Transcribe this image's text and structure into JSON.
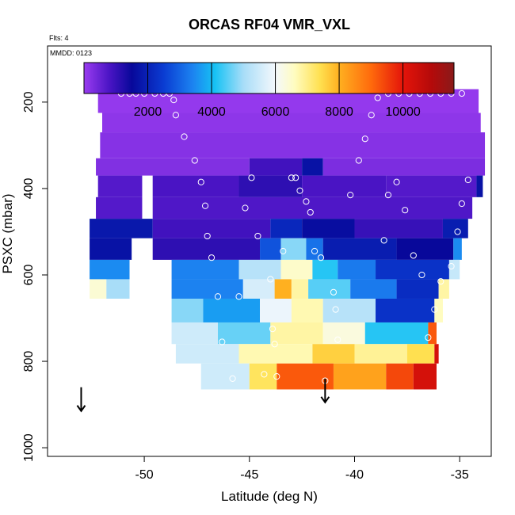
{
  "chart_data": {
    "type": "heatmap",
    "title": "ORCAS RF04 VMR_VXL",
    "flts_label": "Flts: 4",
    "mmdd_label": "MMDD: 0123",
    "xlabel": "Latitude (deg N)",
    "ylabel": "PSXC (mbar)",
    "xlim": [
      -54.6,
      -33.5
    ],
    "ylim": [
      1020,
      70
    ],
    "x_ticks": [
      -50,
      -45,
      -40,
      -35
    ],
    "x_tick_labels": [
      "-50",
      "-45",
      "-40",
      "-35"
    ],
    "y_ticks": [
      200,
      400,
      600,
      800,
      1000
    ],
    "y_tick_labels": [
      "200",
      "400",
      "600",
      "800",
      "1000"
    ],
    "colorbar": {
      "min": 0,
      "max": 11600,
      "ticks": [
        2000,
        4000,
        6000,
        8000,
        10000
      ],
      "tick_labels": [
        "2000",
        "4000",
        "6000",
        "8000",
        "10000"
      ],
      "stops": [
        {
          "v": 0,
          "c": "#9a3cf0"
        },
        {
          "v": 800,
          "c": "#4a14c4"
        },
        {
          "v": 1500,
          "c": "#08089a"
        },
        {
          "v": 2500,
          "c": "#0a3cd2"
        },
        {
          "v": 3400,
          "c": "#1c82f0"
        },
        {
          "v": 4100,
          "c": "#16c2f4"
        },
        {
          "v": 5000,
          "c": "#a8ddf8"
        },
        {
          "v": 6000,
          "c": "#f4f8fc"
        },
        {
          "v": 6600,
          "c": "#fffcc0"
        },
        {
          "v": 7400,
          "c": "#ffe050"
        },
        {
          "v": 8000,
          "c": "#ffb020"
        },
        {
          "v": 9000,
          "c": "#ff6a0c"
        },
        {
          "v": 10000,
          "c": "#e4140a"
        },
        {
          "v": 10900,
          "c": "#b40a0a"
        },
        {
          "v": 11600,
          "c": "#8a1a1a"
        }
      ]
    },
    "rows": [
      {
        "p0": 170,
        "p1": 225,
        "segments": [
          {
            "x0": -52.2,
            "x1": -34.1,
            "v": 60
          }
        ]
      },
      {
        "p0": 225,
        "p1": 270,
        "segments": [
          {
            "x0": -52.0,
            "x1": -34.0,
            "v": 120
          }
        ]
      },
      {
        "p0": 270,
        "p1": 330,
        "segments": [
          {
            "x0": -52.1,
            "x1": -33.8,
            "v": 200
          }
        ]
      },
      {
        "p0": 330,
        "p1": 370,
        "segments": [
          {
            "x0": -52.3,
            "x1": -45.0,
            "v": 250
          },
          {
            "x0": -45.0,
            "x1": -42.5,
            "v": 900
          },
          {
            "x0": -42.5,
            "x1": -41.5,
            "v": 1700
          },
          {
            "x0": -41.5,
            "x1": -33.8,
            "v": 300
          }
        ]
      },
      {
        "p0": 370,
        "p1": 420,
        "segments": [
          {
            "x0": -52.2,
            "x1": -50.1,
            "v": 700
          },
          {
            "x0": -49.6,
            "x1": -45.5,
            "v": 800
          },
          {
            "x0": -45.5,
            "x1": -42.5,
            "v": 1100
          },
          {
            "x0": -42.5,
            "x1": -38.5,
            "v": 800
          },
          {
            "x0": -38.5,
            "x1": -34.2,
            "v": 700
          },
          {
            "x0": -34.2,
            "x1": -33.9,
            "v": 1700
          }
        ]
      },
      {
        "p0": 420,
        "p1": 470,
        "segments": [
          {
            "x0": -52.3,
            "x1": -50.1,
            "v": 700
          },
          {
            "x0": -49.6,
            "x1": -34.4,
            "v": 750
          }
        ]
      },
      {
        "p0": 470,
        "p1": 515,
        "segments": [
          {
            "x0": -52.6,
            "x1": -49.6,
            "v": 1800
          },
          {
            "x0": -49.6,
            "x1": -44.0,
            "v": 900
          },
          {
            "x0": -44.0,
            "x1": -42.5,
            "v": 2100
          },
          {
            "x0": -42.5,
            "x1": -40.0,
            "v": 1600
          },
          {
            "x0": -40.0,
            "x1": -35.8,
            "v": 1000
          },
          {
            "x0": -35.8,
            "x1": -34.6,
            "v": 1900
          }
        ]
      },
      {
        "p0": 515,
        "p1": 565,
        "segments": [
          {
            "x0": -52.6,
            "x1": -50.6,
            "v": 1700
          },
          {
            "x0": -49.6,
            "x1": -44.5,
            "v": 1100
          },
          {
            "x0": -44.5,
            "x1": -43.5,
            "v": 2800
          },
          {
            "x0": -43.5,
            "x1": -42.3,
            "v": 4800
          },
          {
            "x0": -42.3,
            "x1": -41.5,
            "v": 3200
          },
          {
            "x0": -41.5,
            "x1": -38.0,
            "v": 1900
          },
          {
            "x0": -38.0,
            "x1": -35.3,
            "v": 1500
          },
          {
            "x0": -35.3,
            "x1": -34.9,
            "v": 3500
          }
        ]
      },
      {
        "p0": 565,
        "p1": 610,
        "segments": [
          {
            "x0": -52.6,
            "x1": -50.7,
            "v": 3500
          },
          {
            "x0": -48.7,
            "x1": -45.5,
            "v": 3400
          },
          {
            "x0": -45.5,
            "x1": -43.5,
            "v": 5200
          },
          {
            "x0": -43.5,
            "x1": -42.0,
            "v": 6500
          },
          {
            "x0": -42.0,
            "x1": -40.8,
            "v": 4200
          },
          {
            "x0": -40.8,
            "x1": -39.0,
            "v": 3300
          },
          {
            "x0": -39.0,
            "x1": -35.5,
            "v": 2300
          },
          {
            "x0": -35.5,
            "x1": -35.0,
            "v": 5400
          }
        ]
      },
      {
        "p0": 610,
        "p1": 655,
        "segments": [
          {
            "x0": -52.6,
            "x1": -51.8,
            "v": 6400
          },
          {
            "x0": -51.8,
            "x1": -50.7,
            "v": 5000
          },
          {
            "x0": -48.7,
            "x1": -45.3,
            "v": 3400
          },
          {
            "x0": -45.3,
            "x1": -43.8,
            "v": 5600
          },
          {
            "x0": -43.8,
            "x1": -43.0,
            "v": 8000
          },
          {
            "x0": -43.0,
            "x1": -42.2,
            "v": 6800
          },
          {
            "x0": -42.2,
            "x1": -40.2,
            "v": 4500
          },
          {
            "x0": -40.2,
            "x1": -38.0,
            "v": 3300
          },
          {
            "x0": -38.0,
            "x1": -36.0,
            "v": 2200
          },
          {
            "x0": -36.0,
            "x1": -35.5,
            "v": 6800
          }
        ]
      },
      {
        "p0": 655,
        "p1": 710,
        "segments": [
          {
            "x0": -48.7,
            "x1": -47.2,
            "v": 4800
          },
          {
            "x0": -47.2,
            "x1": -44.5,
            "v": 3700
          },
          {
            "x0": -44.5,
            "x1": -43.0,
            "v": 5900
          },
          {
            "x0": -43.0,
            "x1": -41.5,
            "v": 6700
          },
          {
            "x0": -41.5,
            "x1": -39.0,
            "v": 5200
          },
          {
            "x0": -39.0,
            "x1": -36.2,
            "v": 2300
          },
          {
            "x0": -36.2,
            "x1": -35.8,
            "v": 6600
          }
        ]
      },
      {
        "p0": 710,
        "p1": 760,
        "segments": [
          {
            "x0": -48.7,
            "x1": -46.5,
            "v": 5500
          },
          {
            "x0": -46.5,
            "x1": -44.0,
            "v": 4600
          },
          {
            "x0": -44.0,
            "x1": -41.5,
            "v": 6800
          },
          {
            "x0": -41.5,
            "x1": -39.5,
            "v": 6300
          },
          {
            "x0": -39.5,
            "x1": -36.5,
            "v": 4200
          },
          {
            "x0": -36.5,
            "x1": -36.1,
            "v": 9200
          }
        ]
      },
      {
        "p0": 760,
        "p1": 805,
        "segments": [
          {
            "x0": -48.5,
            "x1": -45.5,
            "v": 5500
          },
          {
            "x0": -45.5,
            "x1": -42.0,
            "v": 6700
          },
          {
            "x0": -42.0,
            "x1": -40.0,
            "v": 7600
          },
          {
            "x0": -40.0,
            "x1": -37.5,
            "v": 6900
          },
          {
            "x0": -37.5,
            "x1": -36.2,
            "v": 7400
          },
          {
            "x0": -36.2,
            "x1": -36.0,
            "v": 10300
          }
        ]
      },
      {
        "p0": 805,
        "p1": 865,
        "segments": [
          {
            "x0": -47.3,
            "x1": -45.0,
            "v": 5500
          },
          {
            "x0": -45.0,
            "x1": -43.7,
            "v": 7300
          },
          {
            "x0": -43.7,
            "x1": -41.0,
            "v": 9200
          },
          {
            "x0": -41.0,
            "x1": -38.5,
            "v": 8200
          },
          {
            "x0": -38.5,
            "x1": -37.2,
            "v": 9400
          },
          {
            "x0": -37.2,
            "x1": -36.1,
            "v": 10300
          }
        ]
      }
    ],
    "points": [
      [
        -51.1,
        180
      ],
      [
        -50.7,
        180
      ],
      [
        -50.4,
        180
      ],
      [
        -50.0,
        180
      ],
      [
        -49.5,
        180
      ],
      [
        -49.1,
        180
      ],
      [
        -48.8,
        180
      ],
      [
        -48.6,
        195
      ],
      [
        -48.5,
        230
      ],
      [
        -48.1,
        280
      ],
      [
        -47.6,
        335
      ],
      [
        -47.3,
        385
      ],
      [
        -47.1,
        440
      ],
      [
        -47.0,
        510
      ],
      [
        -46.8,
        560
      ],
      [
        -46.5,
        650
      ],
      [
        -46.3,
        755
      ],
      [
        -45.8,
        840
      ],
      [
        -45.5,
        650
      ],
      [
        -45.2,
        445
      ],
      [
        -44.9,
        375
      ],
      [
        -44.6,
        510
      ],
      [
        -44.3,
        830
      ],
      [
        -44.0,
        610
      ],
      [
        -43.9,
        725
      ],
      [
        -43.8,
        760
      ],
      [
        -43.7,
        835
      ],
      [
        -43.4,
        545
      ],
      [
        -43.0,
        375
      ],
      [
        -42.8,
        375
      ],
      [
        -42.6,
        405
      ],
      [
        -42.3,
        430
      ],
      [
        -42.1,
        455
      ],
      [
        -41.9,
        545
      ],
      [
        -41.6,
        560
      ],
      [
        -41.4,
        845
      ],
      [
        -41.0,
        640
      ],
      [
        -40.9,
        680
      ],
      [
        -40.8,
        750
      ],
      [
        -40.2,
        415
      ],
      [
        -39.8,
        335
      ],
      [
        -39.5,
        285
      ],
      [
        -39.2,
        230
      ],
      [
        -38.9,
        190
      ],
      [
        -38.4,
        180
      ],
      [
        -37.9,
        180
      ],
      [
        -37.4,
        180
      ],
      [
        -36.9,
        180
      ],
      [
        -36.4,
        180
      ],
      [
        -35.9,
        180
      ],
      [
        -35.4,
        180
      ],
      [
        -34.9,
        180
      ],
      [
        -38.6,
        520
      ],
      [
        -38.4,
        415
      ],
      [
        -38.0,
        385
      ],
      [
        -37.6,
        450
      ],
      [
        -37.2,
        555
      ],
      [
        -36.8,
        600
      ],
      [
        -36.5,
        745
      ],
      [
        -36.2,
        680
      ],
      [
        -35.9,
        615
      ],
      [
        -35.4,
        580
      ],
      [
        -35.1,
        500
      ],
      [
        -34.9,
        435
      ],
      [
        -34.6,
        380
      ]
    ],
    "arrows": [
      {
        "x": -53.0,
        "p_top": 860,
        "p_tip": 915
      },
      {
        "x": -41.4,
        "p_top": 840,
        "p_tip": 895
      }
    ]
  }
}
